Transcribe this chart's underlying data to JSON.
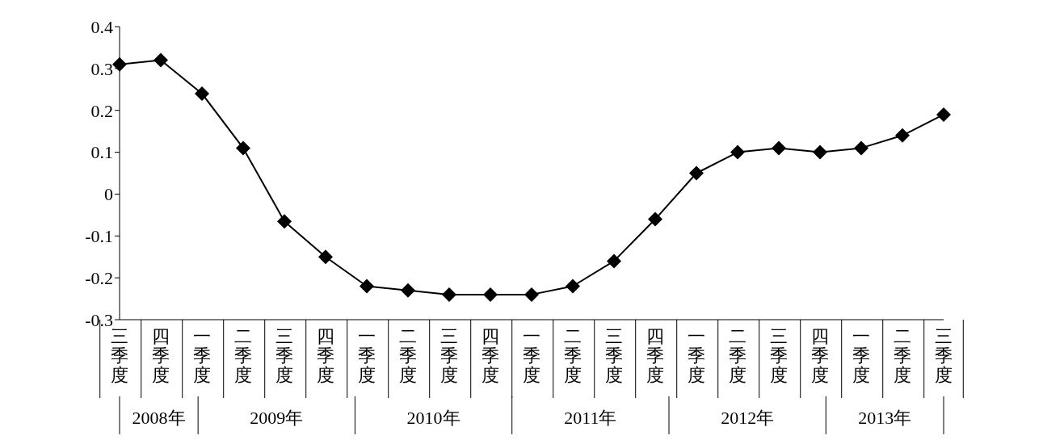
{
  "chart_data": {
    "type": "line",
    "categories": [
      "三季度",
      "四季度",
      "一季度",
      "二季度",
      "三季度",
      "四季度",
      "一季度",
      "二季度",
      "三季度",
      "四季度",
      "一季度",
      "二季度",
      "三季度",
      "四季度",
      "一季度",
      "二季度",
      "三季度",
      "四季度",
      "一季度",
      "二季度",
      "三季度"
    ],
    "series": [
      {
        "color": "#000000",
        "values": [
          0.31,
          0.32,
          0.24,
          0.11,
          -0.065,
          -0.15,
          -0.22,
          -0.23,
          -0.24,
          -0.24,
          -0.24,
          -0.22,
          -0.16,
          -0.06,
          0.05,
          0.1,
          0.11,
          0.1,
          0.11,
          0.14,
          0.19
        ]
      }
    ],
    "ylim": [
      -0.3,
      0.4
    ],
    "yticks": [
      -0.3,
      -0.2,
      -0.1,
      0,
      0.1,
      0.2,
      0.3,
      0.4
    ],
    "annotations": [
      "2008年",
      "2009年",
      "2010年",
      "2011年",
      "2012年",
      "2013年"
    ],
    "grid": false,
    "legend": false,
    "marker": "diamond",
    "line_style": "solid"
  }
}
